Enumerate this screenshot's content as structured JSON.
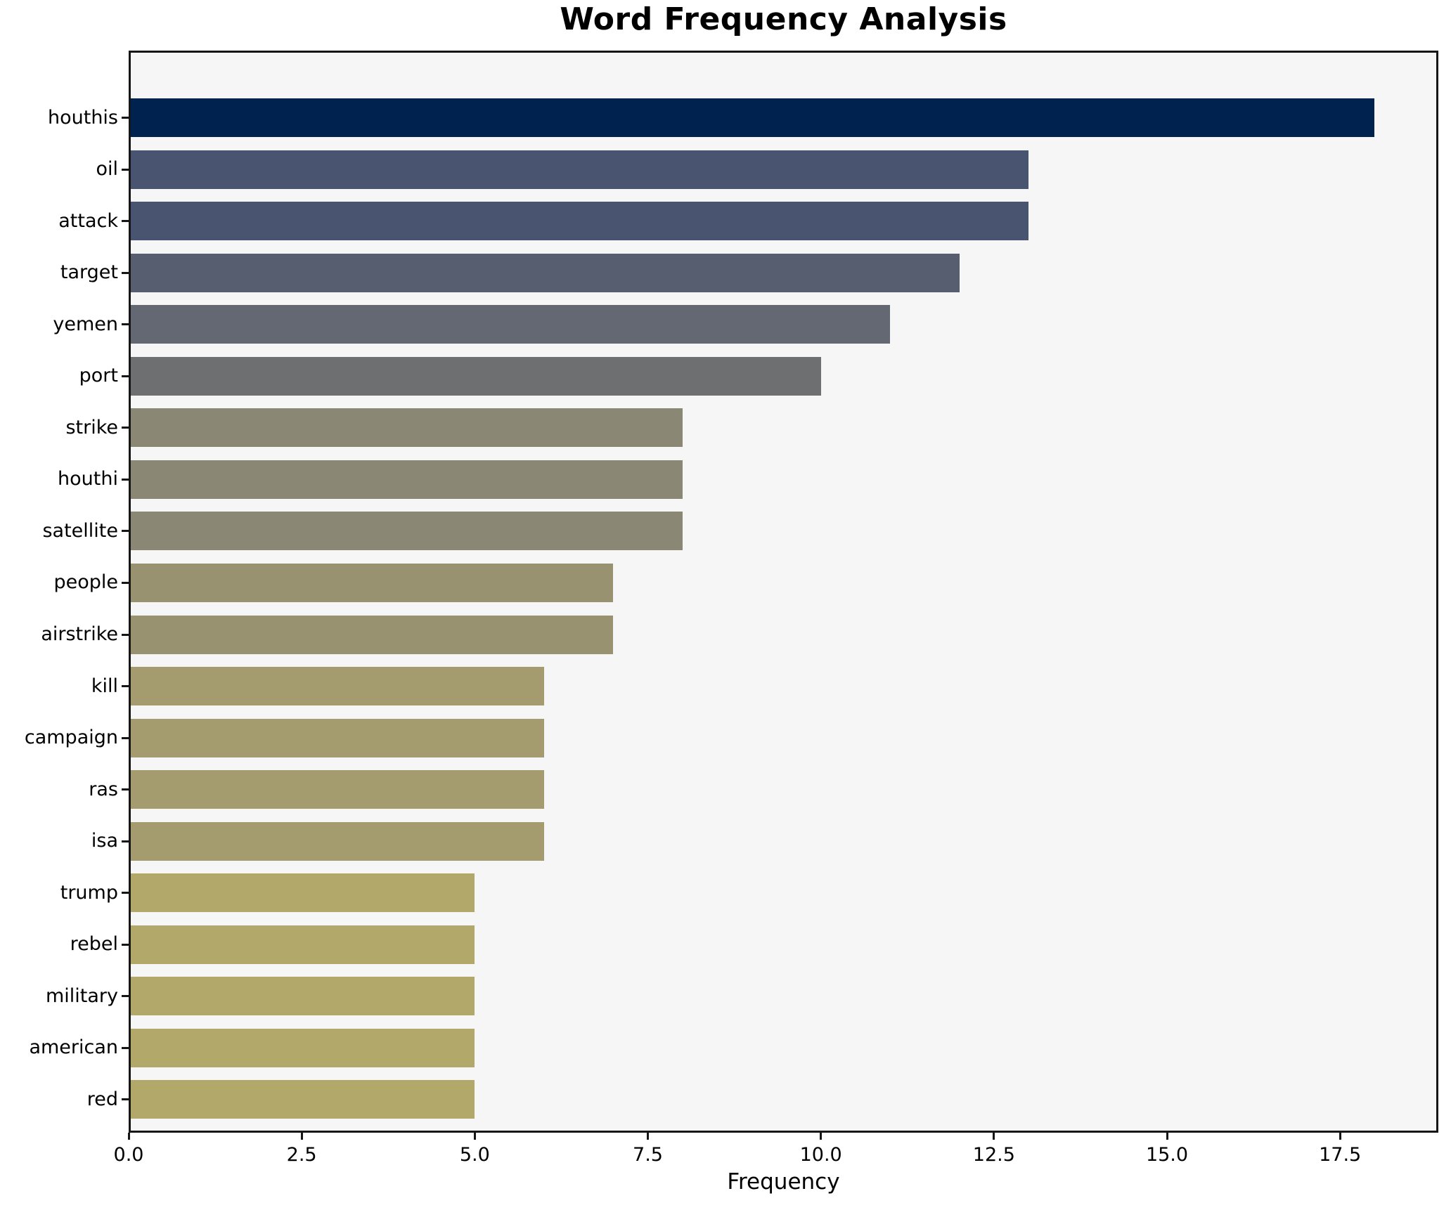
{
  "chart_data": {
    "type": "bar",
    "orientation": "horizontal",
    "title": "Word Frequency Analysis",
    "xlabel": "Frequency",
    "ylabel": "",
    "xlim": [
      0,
      18.92
    ],
    "grid": false,
    "legend": "none",
    "x_ticks": [
      {
        "label": "0.0",
        "value": 0.0
      },
      {
        "label": "2.5",
        "value": 2.5
      },
      {
        "label": "5.0",
        "value": 5.0
      },
      {
        "label": "7.5",
        "value": 7.5
      },
      {
        "label": "10.0",
        "value": 10.0
      },
      {
        "label": "12.5",
        "value": 12.5
      },
      {
        "label": "15.0",
        "value": 15.0
      },
      {
        "label": "17.5",
        "value": 17.5
      }
    ],
    "items": [
      {
        "label": "houthis",
        "value": 18,
        "color": "#00224e"
      },
      {
        "label": "oil",
        "value": 13,
        "color": "#485470"
      },
      {
        "label": "attack",
        "value": 13,
        "color": "#485470"
      },
      {
        "label": "target",
        "value": 12,
        "color": "#575e70"
      },
      {
        "label": "yemen",
        "value": 11,
        "color": "#636872"
      },
      {
        "label": "port",
        "value": 10,
        "color": "#6e6f71"
      },
      {
        "label": "strike",
        "value": 8,
        "color": "#8a8774"
      },
      {
        "label": "houthi",
        "value": 8,
        "color": "#8a8774"
      },
      {
        "label": "satellite",
        "value": 8,
        "color": "#8a8774"
      },
      {
        "label": "people",
        "value": 7,
        "color": "#989270"
      },
      {
        "label": "airstrike",
        "value": 7,
        "color": "#989270"
      },
      {
        "label": "kill",
        "value": 6,
        "color": "#a49c6e"
      },
      {
        "label": "campaign",
        "value": 6,
        "color": "#a49c6e"
      },
      {
        "label": "ras",
        "value": 6,
        "color": "#a49c6e"
      },
      {
        "label": "isa",
        "value": 6,
        "color": "#a49c6e"
      },
      {
        "label": "trump",
        "value": 5,
        "color": "#b2a86a"
      },
      {
        "label": "rebel",
        "value": 5,
        "color": "#b2a86a"
      },
      {
        "label": "military",
        "value": 5,
        "color": "#b2a86a"
      },
      {
        "label": "american",
        "value": 5,
        "color": "#b2a86a"
      },
      {
        "label": "red",
        "value": 5,
        "color": "#b2a86a"
      }
    ],
    "colors": {
      "figure_background": "#ffffff",
      "axes_background": "#f6f6f7",
      "spine": "#161616",
      "text": "#000000"
    }
  }
}
